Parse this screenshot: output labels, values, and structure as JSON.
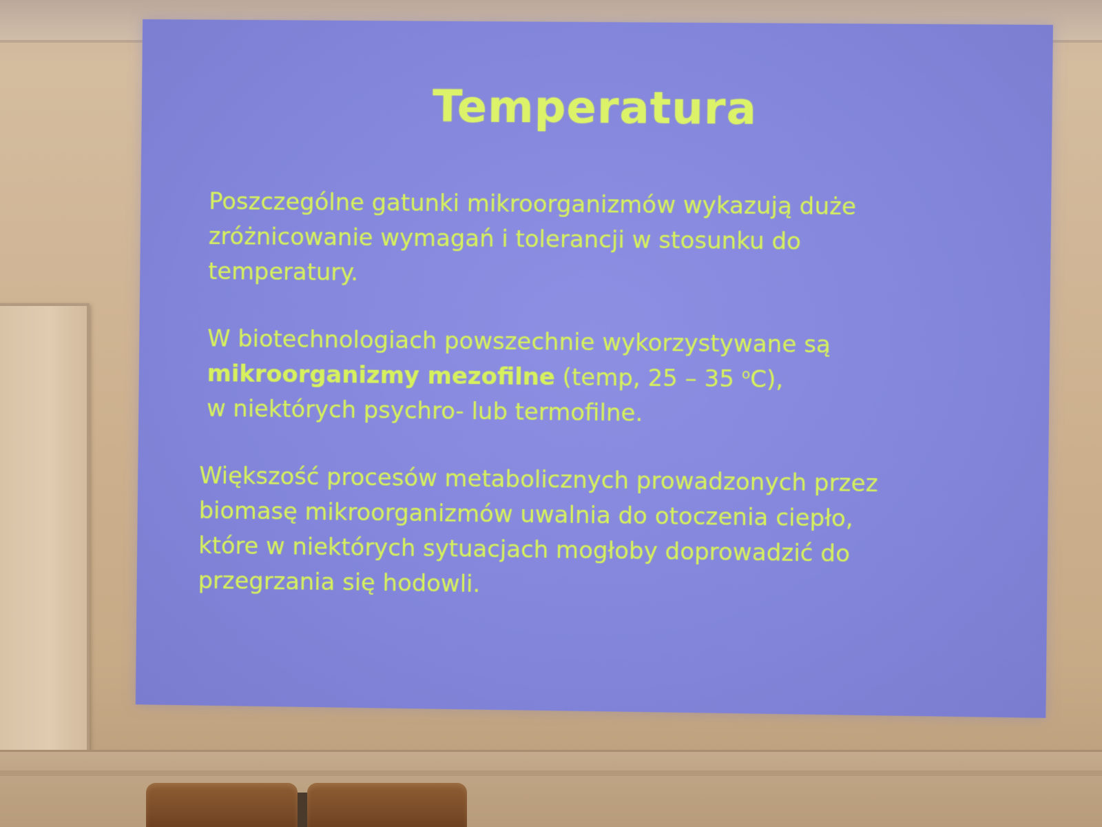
{
  "slide": {
    "title": "Temperatura",
    "paragraph_1": {
      "lines": [
        "Poszczególne gatunki mikroorganizmów wykazują duże",
        "zróżnicowanie wymagań i tolerancji w stosunku do",
        "temperatury."
      ]
    },
    "paragraph_2": {
      "line_1": "W biotechnologiach powszechnie wykorzystywane są",
      "line_2_bold": "mikroorganizmy mezofilne",
      "line_2_rest_a": " (temp, 25 – 35 ",
      "line_2_degree": "o",
      "line_2_rest_b": "C),",
      "line_3": "w niektórych psychro- lub termofilne."
    },
    "paragraph_3": {
      "lines": [
        "Większość procesów metabolicznych prowadzonych przez",
        "biomasę mikroorganizmów uwalnia do otoczenia ciepło,",
        "które w niektórych sytuacjach mogłoby doprowadzić do",
        "przegrzania się hodowli."
      ]
    }
  },
  "colors": {
    "screen": "#8386db",
    "text": "#d6f05e",
    "wall": "#cfb493"
  }
}
